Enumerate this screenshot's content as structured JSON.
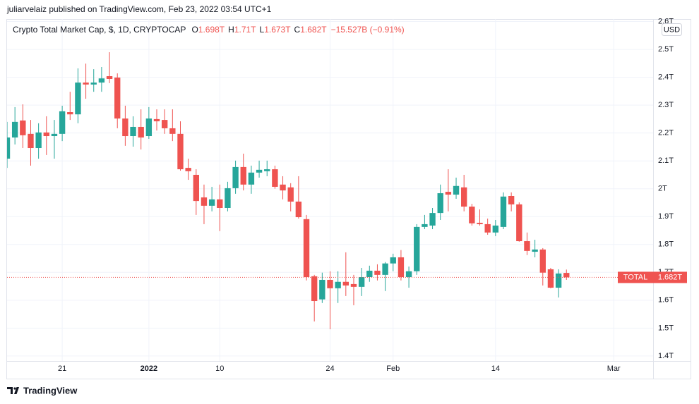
{
  "published": "juliarvelaiz published on TradingView.com, Feb 23, 2022 03:54 UTC+1",
  "footer": "TradingView",
  "chart_data": {
    "type": "candlestick",
    "title": "Crypto Total Market Cap, $, 1D, CRYPTOCAP",
    "legend_ohlc": [
      {
        "key": "O",
        "label": "1.698T"
      },
      {
        "key": "H",
        "label": "1.71T"
      },
      {
        "key": "L",
        "label": "1.673T"
      },
      {
        "key": "C",
        "label": "1.682T"
      }
    ],
    "change": "−15.527B (−0.91%)",
    "currency": "USD",
    "last_price": {
      "name": "TOTAL",
      "value": 1.682,
      "label": "1.682T",
      "color": "#ef5350"
    },
    "up_color": "#26a69a",
    "down_color": "#ef5350",
    "x": [
      "2021-12-14",
      "2021-12-15",
      "2021-12-16",
      "2021-12-17",
      "2021-12-18",
      "2021-12-19",
      "2021-12-20",
      "2021-12-21",
      "2021-12-22",
      "2021-12-23",
      "2021-12-24",
      "2021-12-25",
      "2021-12-26",
      "2021-12-27",
      "2021-12-28",
      "2021-12-29",
      "2021-12-30",
      "2021-12-31",
      "2022-01-01",
      "2022-01-02",
      "2022-01-03",
      "2022-01-04",
      "2022-01-05",
      "2022-01-06",
      "2022-01-07",
      "2022-01-08",
      "2022-01-09",
      "2022-01-10",
      "2022-01-11",
      "2022-01-12",
      "2022-01-13",
      "2022-01-14",
      "2022-01-15",
      "2022-01-16",
      "2022-01-17",
      "2022-01-18",
      "2022-01-19",
      "2022-01-20",
      "2022-01-21",
      "2022-01-22",
      "2022-01-23",
      "2022-01-24",
      "2022-01-25",
      "2022-01-26",
      "2022-01-27",
      "2022-01-28",
      "2022-01-29",
      "2022-01-30",
      "2022-01-31",
      "2022-02-01",
      "2022-02-02",
      "2022-02-03",
      "2022-02-04",
      "2022-02-05",
      "2022-02-06",
      "2022-02-07",
      "2022-02-08",
      "2022-02-09",
      "2022-02-10",
      "2022-02-11",
      "2022-02-12",
      "2022-02-13",
      "2022-02-14",
      "2022-02-15",
      "2022-02-16",
      "2022-02-17",
      "2022-02-18",
      "2022-02-19",
      "2022-02-20",
      "2022-02-21",
      "2022-02-22",
      "2022-02-23"
    ],
    "open": [
      2.108,
      2.184,
      2.245,
      2.197,
      2.146,
      2.202,
      2.189,
      2.197,
      2.275,
      2.267,
      2.381,
      2.374,
      2.381,
      2.404,
      2.399,
      2.252,
      2.189,
      2.222,
      2.189,
      2.25,
      2.247,
      2.217,
      2.197,
      2.075,
      2.05,
      1.969,
      1.939,
      1.962,
      1.931,
      2.002,
      2.078,
      2.015,
      2.058,
      2.063,
      2.07,
      2.015,
      2.005,
      1.954,
      1.891,
      1.686,
      1.603,
      1.673,
      1.643,
      1.666,
      1.658,
      1.648,
      1.683,
      1.706,
      1.691,
      1.732,
      1.754,
      1.683,
      1.704,
      1.863,
      1.868,
      1.913,
      1.989,
      1.979,
      2.005,
      1.936,
      1.878,
      1.873,
      1.843,
      1.863,
      1.974,
      1.944,
      1.812,
      1.774,
      1.782,
      1.711,
      1.645,
      1.698
    ],
    "high": [
      2.24,
      2.293,
      2.303,
      2.247,
      2.235,
      2.26,
      2.247,
      2.298,
      2.348,
      2.432,
      2.449,
      2.429,
      2.437,
      2.49,
      2.414,
      2.298,
      2.26,
      2.285,
      2.293,
      2.285,
      2.285,
      2.285,
      2.242,
      2.108,
      2.07,
      2.015,
      2.007,
      2.015,
      2.025,
      2.101,
      2.126,
      2.083,
      2.101,
      2.101,
      2.083,
      2.045,
      2.02,
      2.045,
      1.906,
      1.691,
      1.699,
      1.704,
      1.704,
      1.772,
      1.691,
      1.716,
      1.724,
      1.729,
      1.737,
      1.767,
      1.78,
      1.721,
      1.873,
      1.906,
      1.931,
      2.015,
      2.07,
      2.04,
      2.05,
      1.946,
      1.926,
      1.893,
      1.888,
      1.987,
      1.987,
      1.951,
      1.843,
      1.817,
      1.787,
      1.716,
      1.711,
      1.71
    ],
    "low": [
      2.075,
      2.159,
      2.146,
      2.083,
      2.108,
      2.121,
      2.108,
      2.171,
      2.247,
      2.235,
      2.323,
      2.348,
      2.348,
      2.379,
      2.217,
      2.154,
      2.151,
      2.141,
      2.179,
      2.209,
      2.197,
      2.171,
      2.065,
      2.032,
      1.906,
      1.873,
      1.919,
      1.848,
      1.919,
      1.982,
      1.994,
      1.982,
      2.04,
      2.045,
      2.0,
      1.962,
      1.919,
      1.893,
      1.671,
      1.524,
      1.59,
      1.496,
      1.59,
      1.615,
      1.582,
      1.615,
      1.666,
      1.671,
      1.633,
      1.704,
      1.671,
      1.645,
      1.691,
      1.855,
      1.855,
      1.888,
      1.919,
      1.964,
      1.919,
      1.868,
      1.868,
      1.835,
      1.83,
      1.855,
      1.919,
      1.81,
      1.762,
      1.754,
      1.653,
      1.643,
      1.61,
      1.673
    ],
    "close": [
      2.184,
      2.24,
      2.192,
      2.146,
      2.202,
      2.189,
      2.197,
      2.278,
      2.267,
      2.381,
      2.374,
      2.381,
      2.396,
      2.394,
      2.252,
      2.189,
      2.222,
      2.184,
      2.252,
      2.242,
      2.217,
      2.197,
      2.07,
      2.063,
      1.956,
      1.939,
      1.962,
      1.931,
      2.002,
      2.078,
      2.015,
      2.058,
      2.068,
      2.07,
      2.007,
      1.994,
      1.954,
      1.898,
      1.683,
      1.597,
      1.673,
      1.643,
      1.666,
      1.653,
      1.648,
      1.683,
      1.706,
      1.691,
      1.732,
      1.754,
      1.683,
      1.704,
      1.863,
      1.873,
      1.913,
      1.984,
      1.979,
      2.01,
      1.936,
      1.876,
      1.873,
      1.843,
      1.868,
      1.972,
      1.944,
      1.812,
      1.777,
      1.782,
      1.699,
      1.645,
      1.696,
      1.682
    ],
    "xlim": [
      "2021-12-14",
      "2022-03-06"
    ],
    "xticks": [
      {
        "value": "2021-12-21",
        "label": "21"
      },
      {
        "value": "2022-01-01",
        "label": "2022"
      },
      {
        "value": "2022-01-10",
        "label": "10"
      },
      {
        "value": "2022-01-24",
        "label": "24"
      },
      {
        "value": "2022-02-01",
        "label": "Feb"
      },
      {
        "value": "2022-02-14",
        "label": "14"
      },
      {
        "value": "2022-03-01",
        "label": "Mar"
      }
    ],
    "ylim": [
      1.382,
      2.609
    ],
    "yticks": [
      {
        "value": 1.4,
        "label": "1.4T"
      },
      {
        "value": 1.5,
        "label": "1.5T"
      },
      {
        "value": 1.6,
        "label": "1.6T"
      },
      {
        "value": 1.7,
        "label": "1.7T"
      },
      {
        "value": 1.8,
        "label": "1.8T"
      },
      {
        "value": 1.9,
        "label": "1.9T"
      },
      {
        "value": 2,
        "label": "2T"
      },
      {
        "value": 2.1,
        "label": "2.1T"
      },
      {
        "value": 2.2,
        "label": "2.2T"
      },
      {
        "value": 2.3,
        "label": "2.3T"
      },
      {
        "value": 2.4,
        "label": "2.4T"
      },
      {
        "value": 2.5,
        "label": "2.5T"
      },
      {
        "value": 2.6,
        "label": "2.6T"
      }
    ],
    "grid": true
  }
}
